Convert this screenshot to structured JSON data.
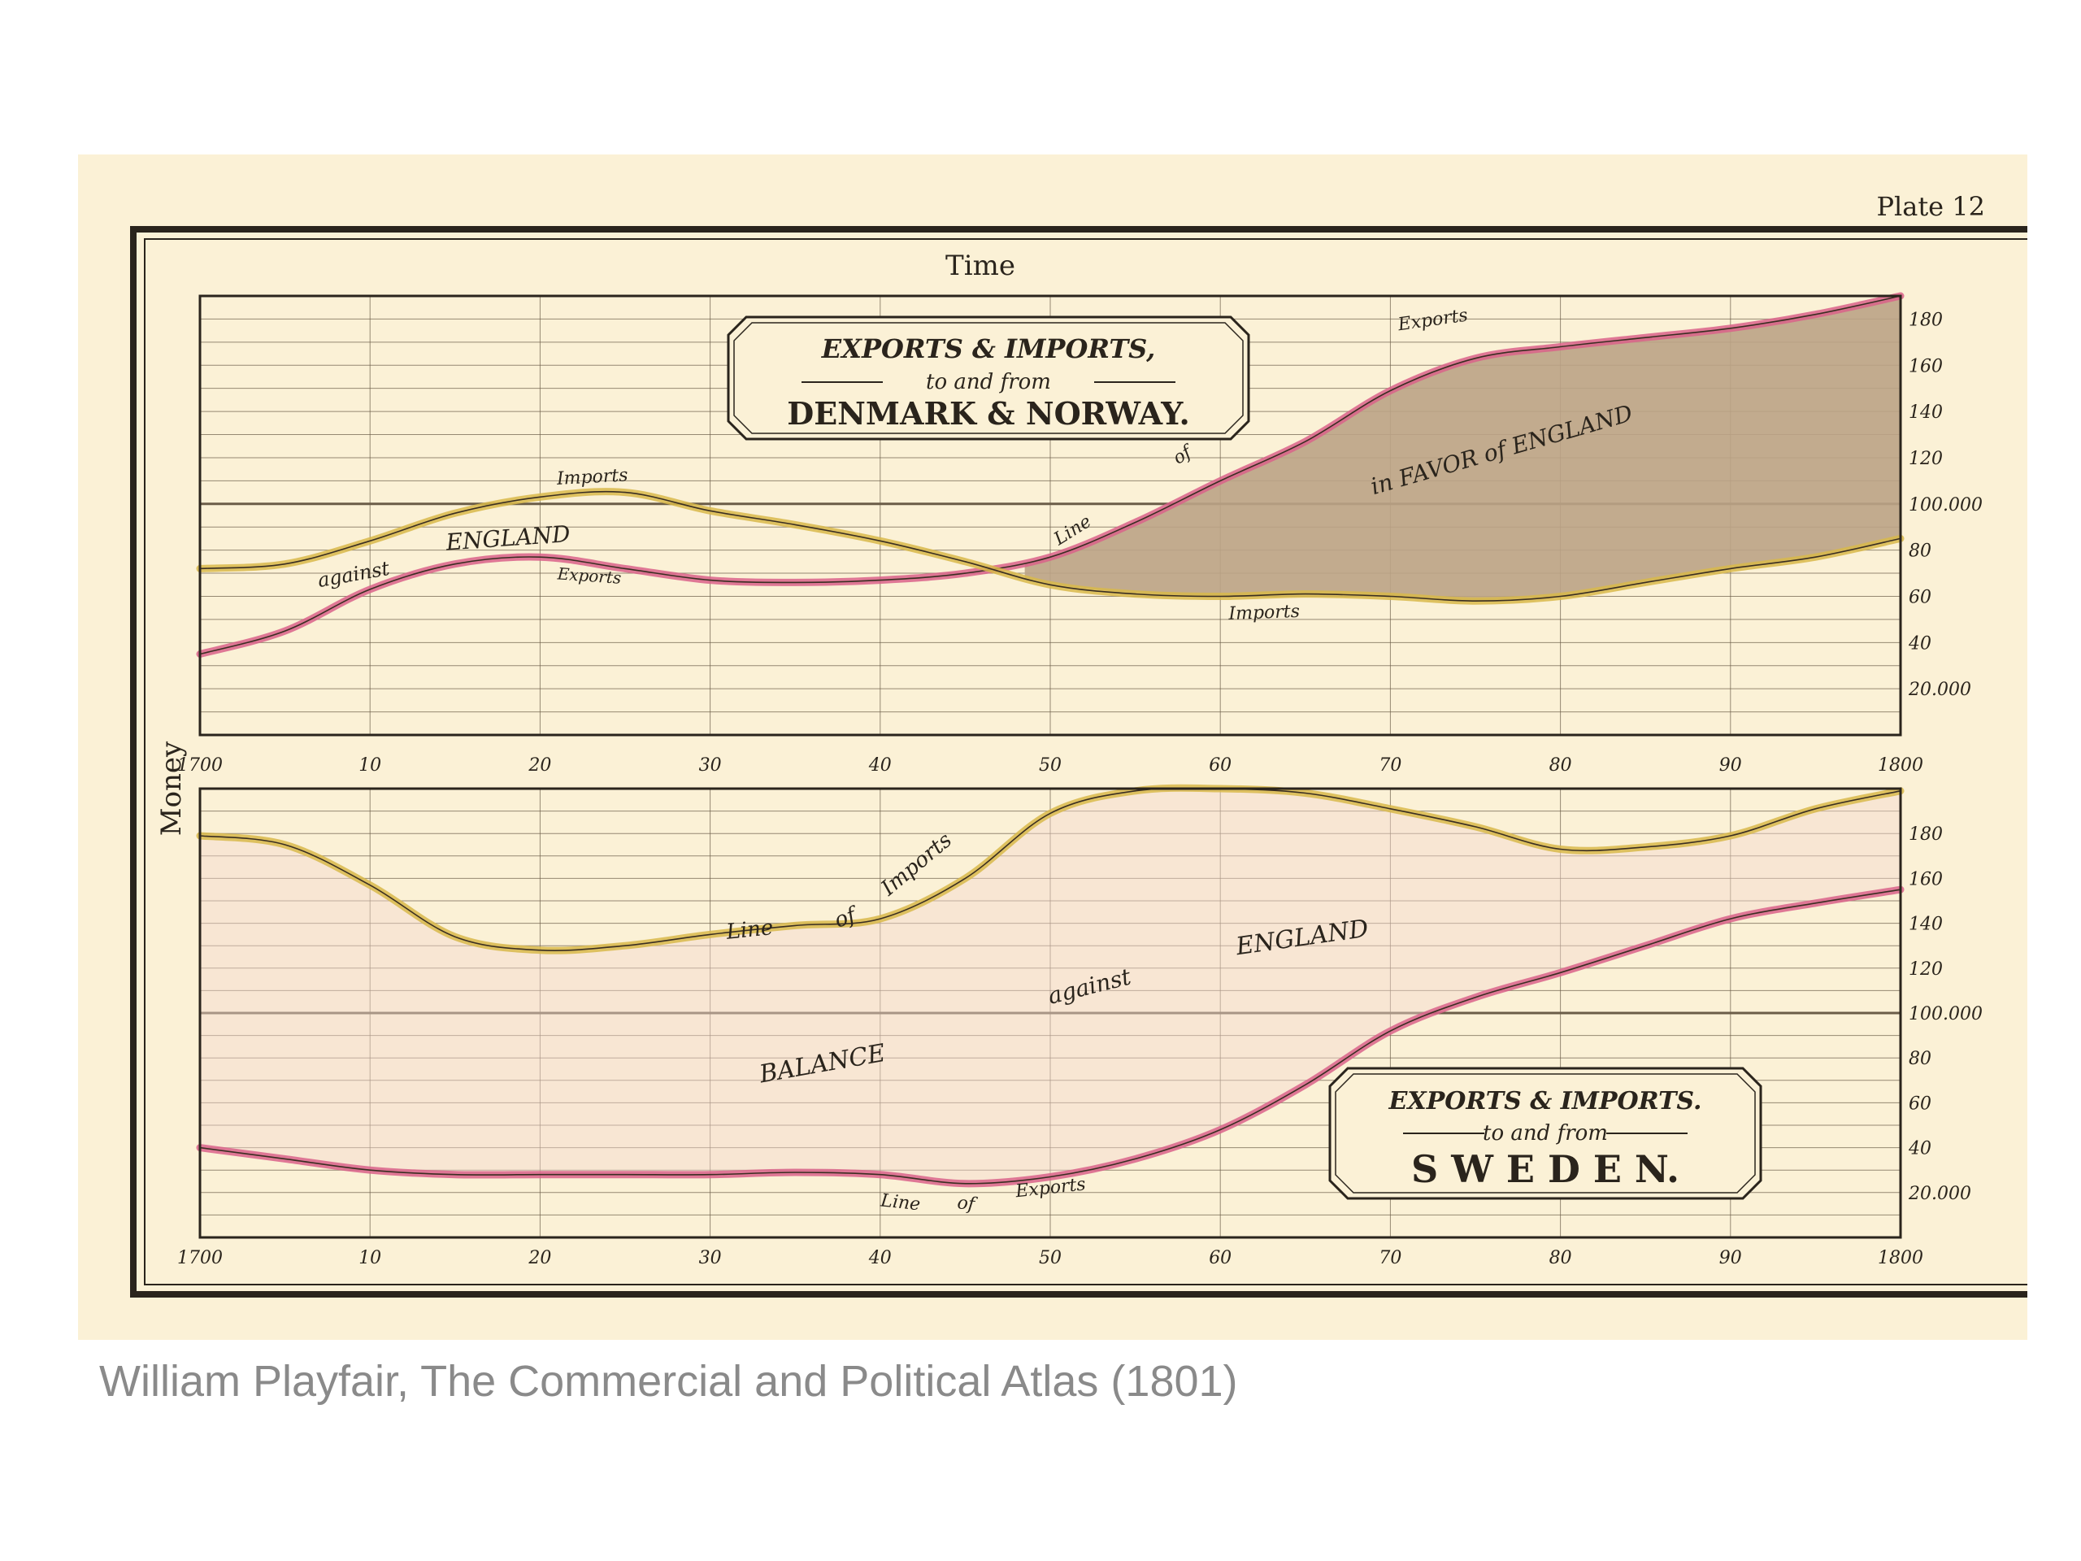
{
  "plate_label": "Plate 12",
  "caption": "William Playfair, The Commercial and Political Atlas (1801)",
  "x_axis_title": "Time",
  "y_axis_title": "Money",
  "colors": {
    "paper": "#fbf1d6",
    "exports_line": "#d9628a",
    "imports_line": "#d8b84a",
    "favor_fill": "#bba386",
    "against_fill": "#f5d9d0",
    "ink": "#2a241c"
  },
  "chart_data": [
    {
      "type": "area",
      "title": "EXPORTS & IMPORTS, to and from DENMARK & NORWAY.",
      "title_lines": [
        "EXPORTS & IMPORTS,",
        "to and from",
        "DENMARK & NORWAY."
      ],
      "xlabel": "Time",
      "ylabel": "Money",
      "xlim": [
        1700,
        1800
      ],
      "ylim": [
        0,
        190
      ],
      "x_ticks": [
        1700,
        1710,
        1720,
        1730,
        1740,
        1750,
        1760,
        1770,
        1780,
        1790,
        1800
      ],
      "x_tick_labels": [
        "1700",
        "10",
        "20",
        "30",
        "40",
        "50",
        "60",
        "70",
        "80",
        "90",
        "1800"
      ],
      "y_ticks": [
        20,
        40,
        60,
        80,
        100,
        120,
        140,
        160,
        180
      ],
      "y_tick_labels": [
        "20.000",
        "40",
        "60",
        "80",
        "100.000",
        "120",
        "140",
        "160",
        "180"
      ],
      "grid": true,
      "series": [
        {
          "name": "Exports",
          "x": [
            1700,
            1705,
            1710,
            1715,
            1720,
            1725,
            1730,
            1735,
            1740,
            1745,
            1750,
            1755,
            1760,
            1765,
            1770,
            1775,
            1780,
            1785,
            1790,
            1795,
            1800
          ],
          "y": [
            35,
            45,
            63,
            74,
            77,
            72,
            67,
            66,
            67,
            70,
            77,
            92,
            110,
            127,
            149,
            163,
            168,
            172,
            176,
            182,
            190
          ]
        },
        {
          "name": "Imports",
          "x": [
            1700,
            1705,
            1710,
            1715,
            1720,
            1725,
            1730,
            1735,
            1740,
            1745,
            1750,
            1755,
            1760,
            1765,
            1770,
            1775,
            1780,
            1785,
            1790,
            1795,
            1800
          ],
          "y": [
            72,
            74,
            84,
            96,
            103,
            105,
            97,
            91,
            84,
            75,
            65,
            61,
            60,
            61,
            60,
            58,
            60,
            66,
            72,
            77,
            85
          ]
        }
      ],
      "annotations": [
        "Exports",
        "Imports",
        "Exports",
        "Imports",
        "against ENGLAND",
        "Line of BALANCE in FAVOR of ENGLAND"
      ],
      "balance_label": [
        "Line",
        "of",
        "in FAVOR of ENGLAND"
      ]
    },
    {
      "type": "area",
      "title": "EXPORTS & IMPORTS. to and from SWEDEN.",
      "title_lines": [
        "EXPORTS & IMPORTS.",
        "to and from",
        "S W E D E N."
      ],
      "xlabel": "Time",
      "ylabel": "Money",
      "xlim": [
        1700,
        1800
      ],
      "ylim": [
        0,
        200
      ],
      "x_ticks": [
        1700,
        1710,
        1720,
        1730,
        1740,
        1750,
        1760,
        1770,
        1780,
        1790,
        1800
      ],
      "x_tick_labels": [
        "1700",
        "10",
        "20",
        "30",
        "40",
        "50",
        "60",
        "70",
        "80",
        "90",
        "1800"
      ],
      "y_ticks": [
        20,
        40,
        60,
        80,
        100,
        120,
        140,
        160,
        180
      ],
      "y_tick_labels": [
        "20.000",
        "40",
        "60",
        "80",
        "100.000",
        "120",
        "140",
        "160",
        "180"
      ],
      "grid": true,
      "series": [
        {
          "name": "Line of Imports",
          "x": [
            1700,
            1705,
            1710,
            1715,
            1720,
            1725,
            1730,
            1735,
            1740,
            1745,
            1750,
            1755,
            1760,
            1765,
            1770,
            1775,
            1780,
            1785,
            1790,
            1795,
            1800
          ],
          "y": [
            179,
            175,
            157,
            134,
            128,
            130,
            135,
            139,
            142,
            160,
            189,
            199,
            200,
            198,
            191,
            183,
            173,
            174,
            179,
            191,
            199
          ]
        },
        {
          "name": "Line of Exports",
          "x": [
            1700,
            1705,
            1710,
            1715,
            1720,
            1725,
            1730,
            1735,
            1740,
            1745,
            1750,
            1755,
            1760,
            1765,
            1770,
            1775,
            1780,
            1785,
            1790,
            1795,
            1800
          ],
          "y": [
            40,
            35,
            30,
            28,
            28,
            28,
            28,
            29,
            28,
            24,
            27,
            35,
            48,
            68,
            92,
            107,
            118,
            130,
            142,
            149,
            155
          ]
        }
      ],
      "annotations": [
        "Line of Imports",
        "Line of Exports",
        "BALANCE against ENGLAND"
      ],
      "balance_label": [
        "BALANCE",
        "against",
        "ENGLAND"
      ]
    }
  ]
}
